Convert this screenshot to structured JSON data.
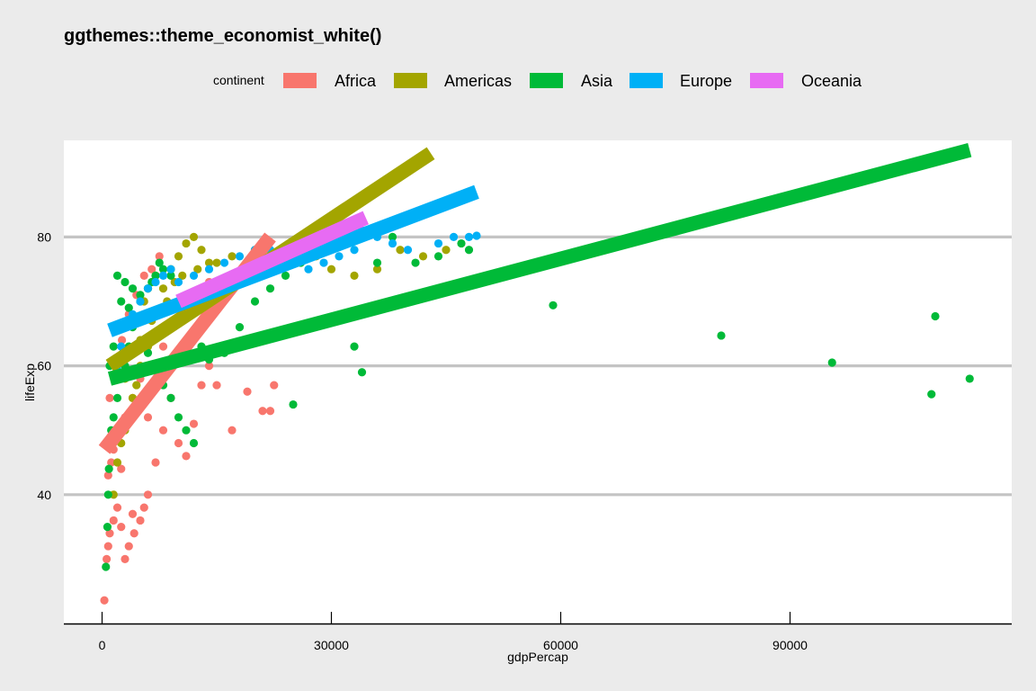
{
  "chart_data": {
    "type": "scatter",
    "title": "ggthemes::theme_economist_white()",
    "xlabel": "gdpPercap",
    "ylabel": "lifeExp",
    "xlim": [
      -5000,
      119000
    ],
    "ylim": [
      20,
      95
    ],
    "x_ticks": [
      0,
      30000,
      60000,
      90000
    ],
    "x_tick_labels": [
      "0",
      "30000",
      "60000",
      "90000"
    ],
    "y_ticks": [
      40,
      60,
      80
    ],
    "y_tick_labels": [
      "40",
      "60",
      "80"
    ],
    "grid": "horizontal",
    "legend_title": "continent",
    "legend_position": "top",
    "series": [
      {
        "name": "Africa",
        "color": "#F8766D",
        "points": [
          [
            300,
            23.6
          ],
          [
            600,
            30
          ],
          [
            800,
            32
          ],
          [
            1000,
            34
          ],
          [
            1500,
            36
          ],
          [
            2000,
            38
          ],
          [
            2500,
            35
          ],
          [
            3000,
            30
          ],
          [
            3500,
            32
          ],
          [
            4000,
            37
          ],
          [
            4200,
            34
          ],
          [
            5000,
            36
          ],
          [
            5500,
            38
          ],
          [
            6000,
            40
          ],
          [
            7000,
            45
          ],
          [
            8000,
            50
          ],
          [
            9000,
            55
          ],
          [
            10000,
            48
          ],
          [
            11000,
            46
          ],
          [
            12000,
            51
          ],
          [
            13000,
            57
          ],
          [
            14000,
            60
          ],
          [
            15000,
            57
          ],
          [
            17000,
            50
          ],
          [
            19000,
            56
          ],
          [
            21000,
            53
          ],
          [
            22000,
            53
          ],
          [
            22500,
            57
          ],
          [
            800,
            43
          ],
          [
            1200,
            45
          ],
          [
            1500,
            47
          ],
          [
            2000,
            50
          ],
          [
            2500,
            44
          ],
          [
            3000,
            52
          ],
          [
            4000,
            55
          ],
          [
            5000,
            58
          ],
          [
            6000,
            52
          ],
          [
            7000,
            60
          ],
          [
            8000,
            63
          ],
          [
            9000,
            66
          ],
          [
            10000,
            62
          ],
          [
            11000,
            70
          ],
          [
            12000,
            65
          ],
          [
            14000,
            73
          ],
          [
            1000,
            55
          ],
          [
            1800,
            60
          ],
          [
            2600,
            64
          ],
          [
            3500,
            68
          ],
          [
            4500,
            71
          ],
          [
            5500,
            74
          ],
          [
            6500,
            75
          ],
          [
            7500,
            77
          ]
        ],
        "trend": [
          [
            300,
            47
          ],
          [
            22000,
            80
          ]
        ]
      },
      {
        "name": "Americas",
        "color": "#A3A500",
        "points": [
          [
            1500,
            40
          ],
          [
            2000,
            45
          ],
          [
            2500,
            48
          ],
          [
            3000,
            50
          ],
          [
            3500,
            52
          ],
          [
            4000,
            55
          ],
          [
            4500,
            57
          ],
          [
            5000,
            60
          ],
          [
            6000,
            63
          ],
          [
            7000,
            68
          ],
          [
            8000,
            72
          ],
          [
            9000,
            75
          ],
          [
            10000,
            77
          ],
          [
            11000,
            79
          ],
          [
            12000,
            80
          ],
          [
            13000,
            78
          ],
          [
            15000,
            76
          ],
          [
            17000,
            77
          ],
          [
            20000,
            78
          ],
          [
            25000,
            78
          ],
          [
            28000,
            77
          ],
          [
            30000,
            75
          ],
          [
            33000,
            74
          ],
          [
            36000,
            75
          ],
          [
            39000,
            78
          ],
          [
            42000,
            77
          ],
          [
            45000,
            78
          ],
          [
            6500,
            67
          ],
          [
            8500,
            70
          ],
          [
            9500,
            73
          ],
          [
            10500,
            74
          ],
          [
            12500,
            75
          ],
          [
            14000,
            76
          ],
          [
            3000,
            58
          ],
          [
            4000,
            62
          ],
          [
            5000,
            64
          ],
          [
            6000,
            72
          ],
          [
            7000,
            74
          ],
          [
            5500,
            70
          ]
        ],
        "trend": [
          [
            1000,
            60
          ],
          [
            43000,
            93
          ]
        ]
      },
      {
        "name": "Asia",
        "color": "#00BA38",
        "points": [
          [
            500,
            28.8
          ],
          [
            700,
            35
          ],
          [
            800,
            40
          ],
          [
            900,
            44
          ],
          [
            1000,
            48
          ],
          [
            1200,
            50
          ],
          [
            1500,
            52
          ],
          [
            2000,
            55
          ],
          [
            2500,
            58
          ],
          [
            3000,
            60
          ],
          [
            3500,
            63
          ],
          [
            4000,
            66
          ],
          [
            5000,
            70
          ],
          [
            6000,
            72
          ],
          [
            7000,
            74
          ],
          [
            8000,
            75
          ],
          [
            9000,
            74
          ],
          [
            10000,
            70
          ],
          [
            11000,
            68
          ],
          [
            12000,
            65
          ],
          [
            13000,
            63
          ],
          [
            14000,
            61
          ],
          [
            16000,
            62
          ],
          [
            18000,
            66
          ],
          [
            20000,
            70
          ],
          [
            22000,
            72
          ],
          [
            24000,
            74
          ],
          [
            26000,
            76
          ],
          [
            28000,
            78
          ],
          [
            30000,
            79
          ],
          [
            33000,
            63
          ],
          [
            34000,
            59
          ],
          [
            25000,
            54
          ],
          [
            12000,
            48
          ],
          [
            11000,
            50
          ],
          [
            10000,
            52
          ],
          [
            9000,
            55
          ],
          [
            8000,
            57
          ],
          [
            7000,
            60
          ],
          [
            6000,
            62
          ],
          [
            36000,
            76
          ],
          [
            38000,
            80
          ],
          [
            41000,
            76
          ],
          [
            44000,
            77
          ],
          [
            47000,
            79
          ],
          [
            48000,
            78
          ],
          [
            59000,
            69.4
          ],
          [
            81000,
            64.7
          ],
          [
            95500,
            60.5
          ],
          [
            108500,
            55.6
          ],
          [
            109000,
            67.7
          ],
          [
            113500,
            58
          ],
          [
            2000,
            74
          ],
          [
            3000,
            73
          ],
          [
            4000,
            72
          ],
          [
            5000,
            71
          ],
          [
            6500,
            73
          ],
          [
            7500,
            76
          ],
          [
            1000,
            60
          ],
          [
            1500,
            63
          ],
          [
            2000,
            66
          ],
          [
            2500,
            70
          ],
          [
            3500,
            69
          ]
        ],
        "trend": [
          [
            1000,
            58
          ],
          [
            113500,
            93.5
          ]
        ]
      },
      {
        "name": "Europe",
        "color": "#00B0F6",
        "points": [
          [
            2000,
            60
          ],
          [
            2500,
            63
          ],
          [
            3000,
            66
          ],
          [
            4000,
            68
          ],
          [
            5000,
            70
          ],
          [
            6000,
            72
          ],
          [
            7000,
            73
          ],
          [
            8000,
            74
          ],
          [
            9000,
            75
          ],
          [
            10000,
            73
          ],
          [
            12000,
            74
          ],
          [
            14000,
            75
          ],
          [
            16000,
            76
          ],
          [
            18000,
            77
          ],
          [
            20000,
            78
          ],
          [
            22000,
            78
          ],
          [
            24000,
            78
          ],
          [
            26000,
            79
          ],
          [
            28000,
            80
          ],
          [
            30000,
            79
          ],
          [
            32000,
            79
          ],
          [
            34000,
            80
          ],
          [
            36000,
            80
          ],
          [
            38000,
            79
          ],
          [
            40000,
            78
          ],
          [
            44000,
            79
          ],
          [
            46000,
            80
          ],
          [
            48000,
            80
          ],
          [
            49000,
            80.2
          ],
          [
            25000,
            76
          ],
          [
            27000,
            75
          ],
          [
            29000,
            76
          ],
          [
            31000,
            77
          ],
          [
            33000,
            78
          ],
          [
            15000,
            72
          ],
          [
            17000,
            73
          ],
          [
            19000,
            74
          ],
          [
            21000,
            75
          ],
          [
            11000,
            70
          ],
          [
            13000,
            71
          ]
        ],
        "trend": [
          [
            1000,
            65.5
          ],
          [
            49000,
            87
          ]
        ]
      },
      {
        "name": "Oceania",
        "color": "#E76BF3",
        "points": [
          [
            10000,
            69
          ],
          [
            12000,
            70
          ],
          [
            14000,
            71
          ],
          [
            16000,
            72
          ],
          [
            18000,
            73
          ],
          [
            20000,
            74
          ],
          [
            22000,
            75
          ],
          [
            24000,
            76
          ],
          [
            26000,
            77
          ],
          [
            28000,
            78
          ],
          [
            30000,
            79
          ],
          [
            32000,
            80
          ],
          [
            34000,
            81
          ]
        ],
        "trend": [
          [
            10000,
            70
          ],
          [
            34500,
            83
          ]
        ]
      }
    ]
  }
}
